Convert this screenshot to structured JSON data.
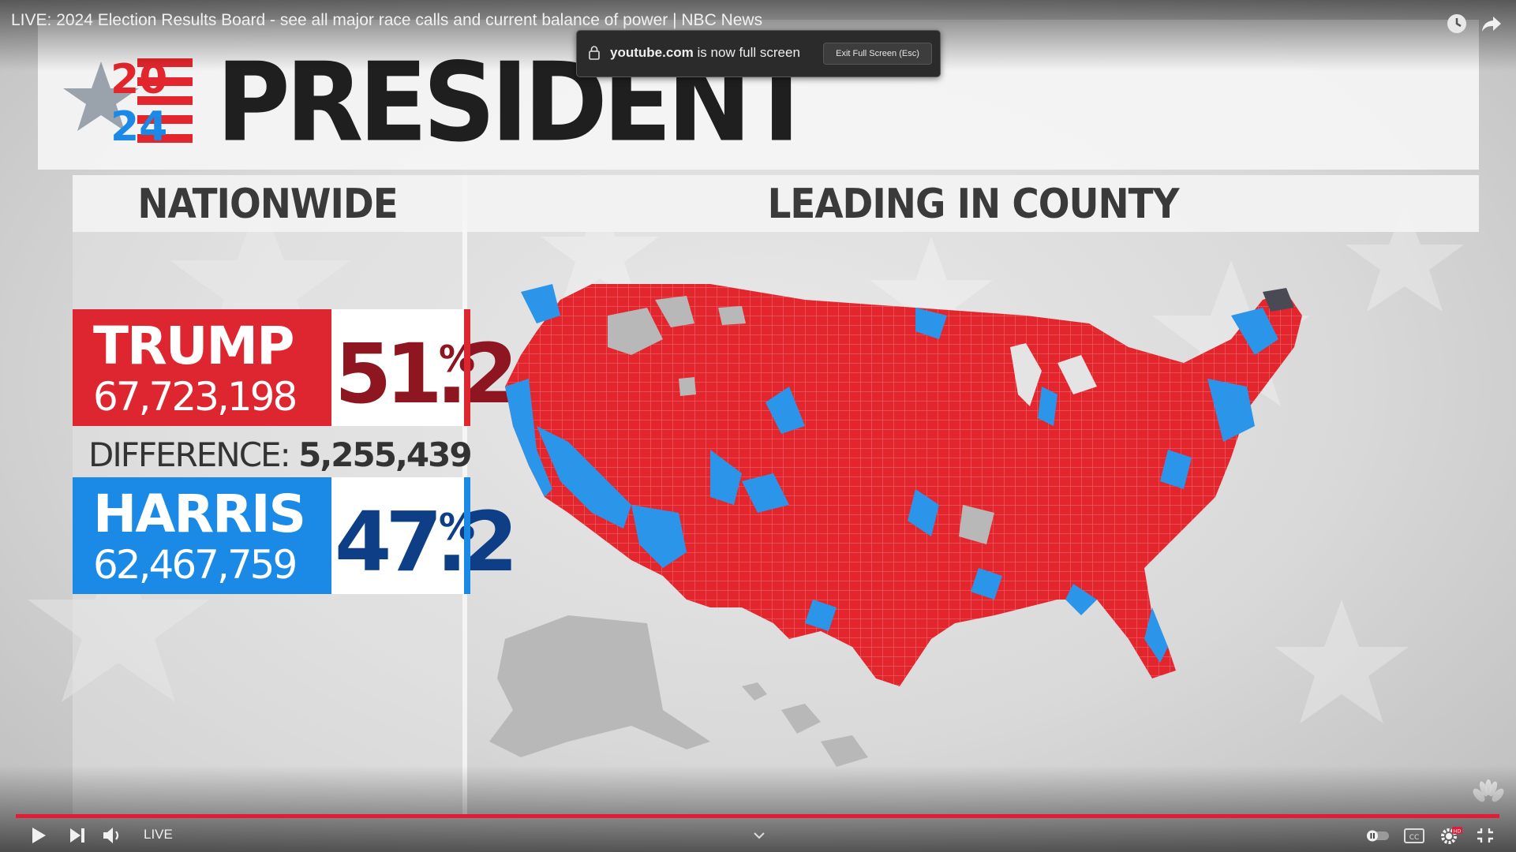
{
  "window": {
    "video_title": "LIVE: 2024 Election Results Board - see all major race calls and current balance of power | NBC News"
  },
  "fullscreen_toast": {
    "domain": "youtube.com",
    "message": "is now full screen",
    "exit_button": "Exit Full Screen (Esc)"
  },
  "board": {
    "logo_year_top": "20",
    "logo_year_bottom": "24",
    "headline": "PRESIDENT",
    "nationwide_header": "NATIONWIDE",
    "county_header": "LEADING IN COUNTY",
    "difference_label": "DIFFERENCE:",
    "difference_value": "5,255,439",
    "candidates": [
      {
        "name": "TRUMP",
        "votes": "67,723,198",
        "pct": "51.2",
        "pct_sign": "%",
        "color": "#de2630",
        "text_color": "#8e1620"
      },
      {
        "name": "HARRIS",
        "votes": "62,467,759",
        "pct": "47.2",
        "pct_sign": "%",
        "color": "#1a8ae6",
        "text_color": "#0e3f86"
      }
    ],
    "map_colors": {
      "republican": "#e3262d",
      "democrat": "#2b95ea",
      "no_result": "#b8b8b8"
    }
  },
  "player": {
    "live_label": "LIVE",
    "progress_fraction": 1.0,
    "icons": [
      "play-icon",
      "next-icon",
      "volume-icon",
      "autoplay-toggle-icon",
      "captions-icon",
      "settings-icon",
      "exit-fullscreen-icon",
      "clock-icon",
      "share-icon",
      "chevron-down-icon"
    ]
  }
}
